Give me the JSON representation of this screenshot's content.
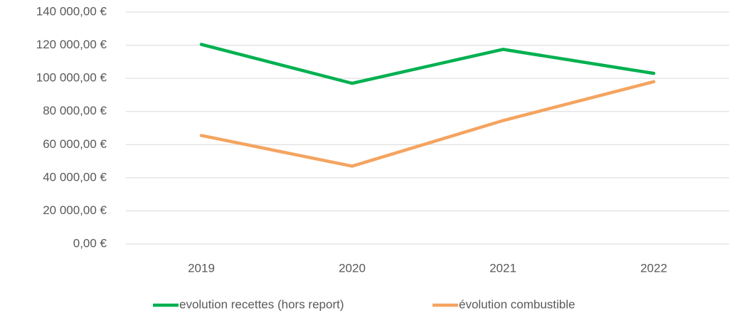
{
  "chart_data": {
    "type": "line",
    "categories": [
      "2019",
      "2020",
      "2021",
      "2022"
    ],
    "series": [
      {
        "name": "evolution recettes (hors report)",
        "color": "#00b050",
        "values": [
          120500,
          97000,
          117500,
          103000
        ]
      },
      {
        "name": "évolution combustible",
        "color": "#f4a460",
        "values": [
          65500,
          47000,
          74500,
          98000
        ]
      }
    ],
    "ylim": [
      0,
      140000
    ],
    "yticks": [
      {
        "value": 0,
        "label": "0,00 €"
      },
      {
        "value": 20000,
        "label": "20 000,00 €"
      },
      {
        "value": 40000,
        "label": "40 000,00 €"
      },
      {
        "value": 60000,
        "label": "60 000,00 €"
      },
      {
        "value": 80000,
        "label": "80 000,00 €"
      },
      {
        "value": 100000,
        "label": "100 000,00 €"
      },
      {
        "value": 120000,
        "label": "120 000,00 €"
      },
      {
        "value": 140000,
        "label": "140 000,00 €"
      }
    ],
    "grid": true,
    "legend": "bottom"
  }
}
